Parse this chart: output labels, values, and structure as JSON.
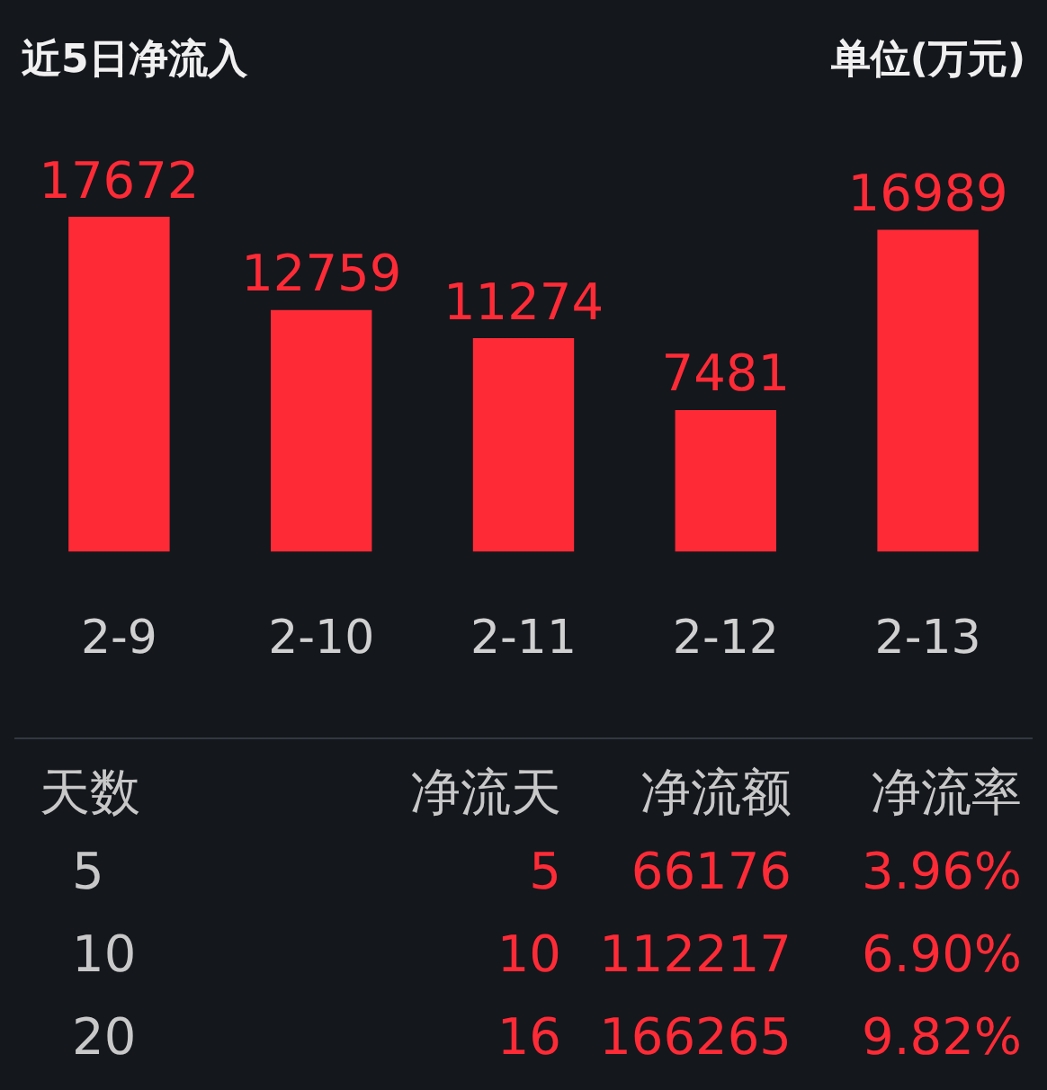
{
  "chart_data": {
    "type": "bar",
    "title": "近5日净流入",
    "subtitle": "单位(万元)",
    "categories": [
      "2-9",
      "2-10",
      "2-11",
      "2-12",
      "2-13"
    ],
    "values": [
      17672,
      12759,
      11274,
      7481,
      16989
    ],
    "color": "#fe2b37",
    "data_labels": true,
    "legend": false,
    "tick_labels": "x",
    "annotations": [
      "天数",
      "净流天",
      "净流额",
      "净流率",
      "5",
      "5",
      "66176",
      "3.96%",
      "10",
      "10",
      "112217",
      "6.90%",
      "20",
      "16",
      "166265",
      "9.82%"
    ]
  }
}
